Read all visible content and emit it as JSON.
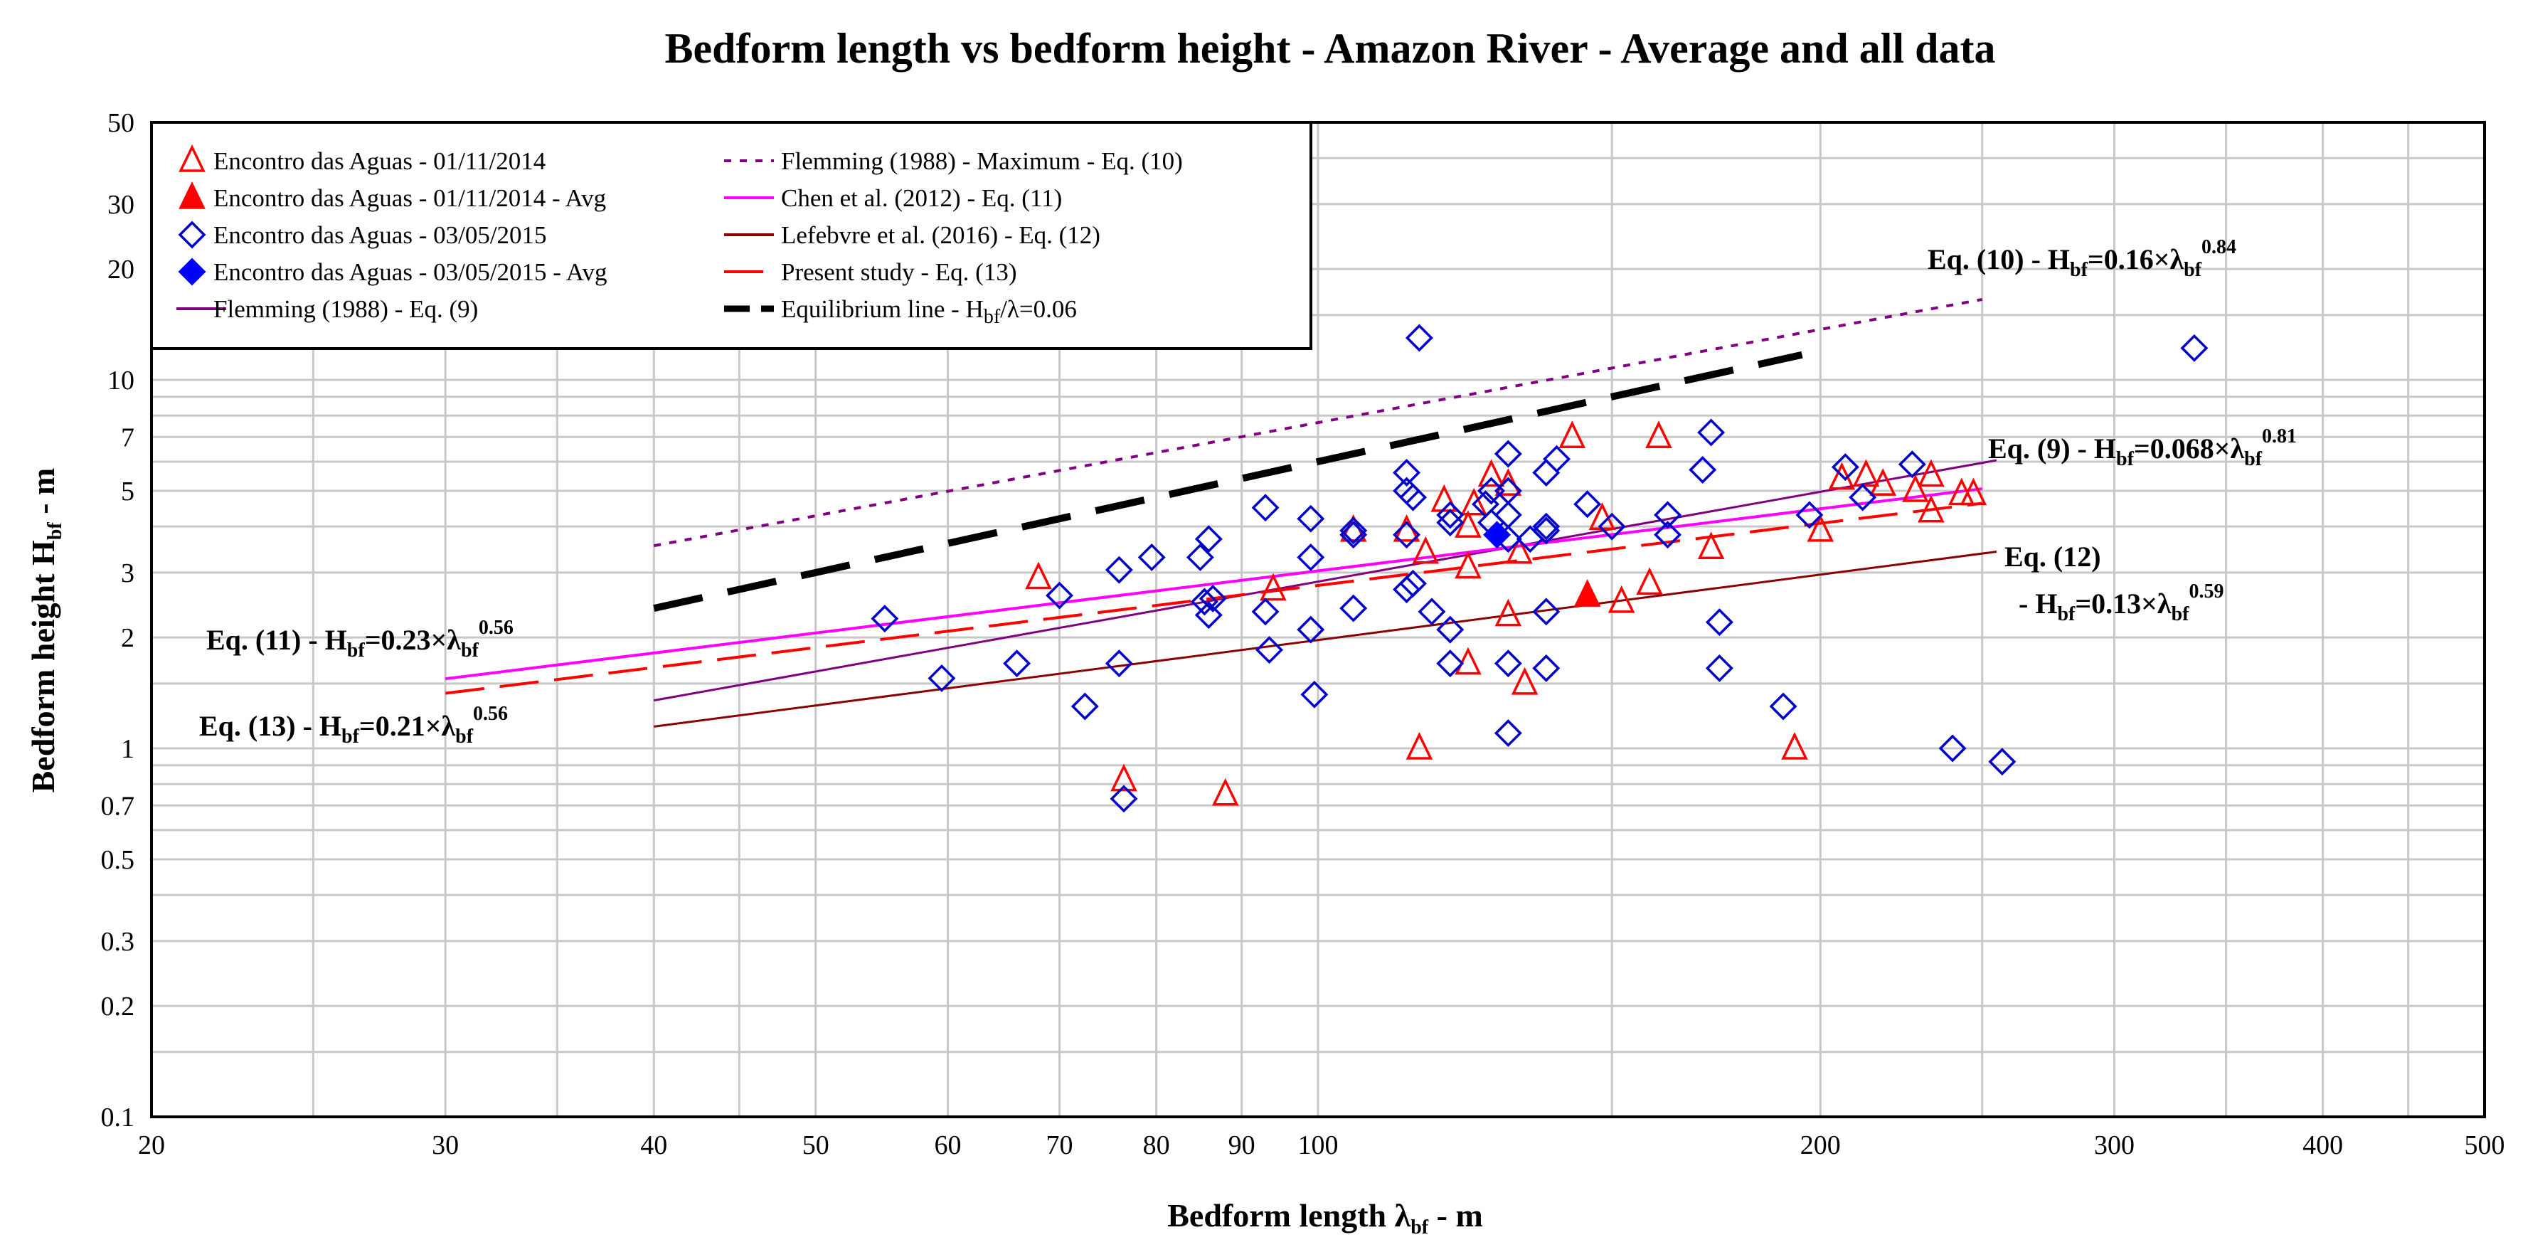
{
  "chart_data": {
    "type": "scatter",
    "title": "Bedform length vs bedform height - Amazon River - Average and all data",
    "xlabel": {
      "main": "Bedform length λ",
      "sub": "bf",
      "tail": " - m"
    },
    "ylabel": {
      "main": "Bedform height H",
      "sub": "bf",
      "tail": " - m"
    },
    "xscale": "log",
    "yscale": "log",
    "xlim": [
      20,
      500
    ],
    "ylim": [
      0.1,
      50
    ],
    "grid": true,
    "x_ticks": [
      {
        "v": 20,
        "label": "20"
      },
      {
        "v": 30,
        "label": "30"
      },
      {
        "v": 40,
        "label": "40"
      },
      {
        "v": 50,
        "label": "50"
      },
      {
        "v": 60,
        "label": "60"
      },
      {
        "v": 70,
        "label": "70"
      },
      {
        "v": 80,
        "label": "80"
      },
      {
        "v": 90,
        "label": "90"
      },
      {
        "v": 100,
        "label": "100"
      },
      {
        "v": 200,
        "label": "200"
      },
      {
        "v": 300,
        "label": "300"
      },
      {
        "v": 400,
        "label": "400"
      },
      {
        "v": 500,
        "label": "500"
      }
    ],
    "y_ticks": [
      {
        "v": 0.1,
        "label": "0.1"
      },
      {
        "v": 0.2,
        "label": "0.2"
      },
      {
        "v": 0.3,
        "label": "0.3"
      },
      {
        "v": 0.5,
        "label": "0.5"
      },
      {
        "v": 0.7,
        "label": "0.7"
      },
      {
        "v": 1,
        "label": "1"
      },
      {
        "v": 2,
        "label": "2"
      },
      {
        "v": 3,
        "label": "3"
      },
      {
        "v": 5,
        "label": "5"
      },
      {
        "v": 7,
        "label": "7"
      },
      {
        "v": 10,
        "label": "10"
      },
      {
        "v": 20,
        "label": "20"
      },
      {
        "v": 30,
        "label": "30"
      },
      {
        "v": 50,
        "label": "50"
      }
    ],
    "x_minor_grid": [
      25,
      35,
      45,
      150,
      250,
      350,
      450
    ],
    "y_minor_grid": [
      0.15,
      0.4,
      0.6,
      0.8,
      0.9,
      1.5,
      4,
      6,
      8,
      9,
      15,
      40
    ],
    "legend_position": "top-left",
    "legend": [
      {
        "label": "Encontro das Aguas - 01/11/2014",
        "marker": "triangle-open",
        "color": "#ff0000"
      },
      {
        "label": "Encontro das Aguas - 01/11/2014 - Avg",
        "marker": "triangle-filled",
        "color": "#ff0000"
      },
      {
        "label": "Encontro das Aguas - 03/05/2015",
        "marker": "diamond-open",
        "color": "#0000cc"
      },
      {
        "label": "Encontro das Aguas - 03/05/2015 - Avg",
        "marker": "diamond-filled",
        "color": "#0000ff"
      },
      {
        "label": "Flemming (1988) - Eq. (9)",
        "line": "solid",
        "color": "#800080",
        "width": 4
      },
      {
        "label": "Flemming (1988) - Maximum - Eq. (10)",
        "line": "dotted",
        "color": "#800080",
        "width": 4
      },
      {
        "label": "Chen et al. (2012) - Eq. (11)",
        "line": "solid",
        "color": "#ff00ff",
        "width": 4
      },
      {
        "label": "Lefebvre et al. (2016) - Eq. (12)",
        "line": "solid",
        "color": "#8b0000",
        "width": 4
      },
      {
        "label": "Present study - Eq. (13)",
        "line": "dashed",
        "color": "#ff0000",
        "width": 4
      },
      {
        "label": "Equilibrium line - H",
        "label_sub": "bf",
        "label_tail": "/λ=0.06",
        "line": "longdash",
        "color": "#000000",
        "width": 9
      }
    ],
    "series": [
      {
        "name": "Encontro das Aguas - 01/11/2014",
        "marker": "triangle-open",
        "color": "#ff0000",
        "points": [
          [
            68,
            2.9
          ],
          [
            76.5,
            0.82
          ],
          [
            88,
            0.75
          ],
          [
            94,
            2.7
          ],
          [
            105,
            3.9
          ],
          [
            113,
            3.9
          ],
          [
            115,
            1.0
          ],
          [
            116,
            3.4
          ],
          [
            119,
            4.7
          ],
          [
            123,
            1.7
          ],
          [
            123,
            3.1
          ],
          [
            123,
            4.0
          ],
          [
            124,
            4.6
          ],
          [
            127,
            5.5
          ],
          [
            130,
            2.3
          ],
          [
            130,
            5.2
          ],
          [
            132,
            3.4
          ],
          [
            133,
            1.5
          ],
          [
            142,
            7.0
          ],
          [
            148,
            4.2
          ],
          [
            152,
            2.5
          ],
          [
            158,
            2.8
          ],
          [
            160,
            7.0
          ],
          [
            172,
            3.5
          ],
          [
            193,
            1.0
          ],
          [
            200,
            3.9
          ],
          [
            206,
            5.4
          ],
          [
            213,
            5.5
          ],
          [
            218,
            5.2
          ],
          [
            228,
            5.0
          ],
          [
            233,
            4.4
          ],
          [
            233,
            5.5
          ],
          [
            243,
            4.9
          ],
          [
            247,
            4.9
          ]
        ]
      },
      {
        "name": "Encontro das Aguas - 01/11/2014 - Avg",
        "marker": "triangle-filled",
        "color": "#ff0000",
        "points": [
          [
            145,
            2.6
          ]
        ]
      },
      {
        "name": "Encontro das Aguas - 03/05/2015",
        "marker": "diamond-open",
        "color": "#0000cc",
        "points": [
          [
            55,
            2.25
          ],
          [
            59.5,
            1.55
          ],
          [
            66,
            1.7
          ],
          [
            70,
            2.6
          ],
          [
            72.5,
            1.3
          ],
          [
            76,
            3.05
          ],
          [
            76,
            1.7
          ],
          [
            76.5,
            0.73
          ],
          [
            79.5,
            3.3
          ],
          [
            85,
            3.3
          ],
          [
            85.5,
            2.5
          ],
          [
            86,
            2.3
          ],
          [
            86.5,
            2.55
          ],
          [
            86,
            3.7
          ],
          [
            93,
            4.5
          ],
          [
            93,
            2.35
          ],
          [
            93.5,
            1.85
          ],
          [
            99,
            4.2
          ],
          [
            99,
            3.3
          ],
          [
            99,
            2.1
          ],
          [
            99.5,
            1.4
          ],
          [
            105,
            3.8
          ],
          [
            105,
            3.9
          ],
          [
            105,
            2.4
          ],
          [
            113,
            3.8
          ],
          [
            113,
            2.7
          ],
          [
            113,
            5.0
          ],
          [
            113,
            5.6
          ],
          [
            114,
            2.8
          ],
          [
            115,
            13
          ],
          [
            114,
            4.8
          ],
          [
            117,
            2.35
          ],
          [
            120,
            2.1
          ],
          [
            120,
            1.7
          ],
          [
            120,
            4.1
          ],
          [
            120,
            4.3
          ],
          [
            126,
            4.6
          ],
          [
            127,
            4.1
          ],
          [
            127,
            5.0
          ],
          [
            130,
            6.3
          ],
          [
            130,
            5.0
          ],
          [
            130,
            4.3
          ],
          [
            130,
            3.7
          ],
          [
            130,
            1.7
          ],
          [
            130,
            1.1
          ],
          [
            134,
            3.7
          ],
          [
            137,
            5.6
          ],
          [
            137,
            3.9
          ],
          [
            137,
            4.0
          ],
          [
            137,
            2.35
          ],
          [
            137,
            1.65
          ],
          [
            139,
            6.1
          ],
          [
            145,
            4.6
          ],
          [
            150,
            4.0
          ],
          [
            162,
            4.3
          ],
          [
            162,
            3.8
          ],
          [
            170,
            5.7
          ],
          [
            172,
            7.2
          ],
          [
            174,
            2.2
          ],
          [
            174,
            1.65
          ],
          [
            190,
            1.3
          ],
          [
            197,
            4.3
          ],
          [
            207,
            5.8
          ],
          [
            212,
            4.8
          ],
          [
            227,
            5.9
          ],
          [
            240,
            1.0
          ],
          [
            257,
            0.92
          ],
          [
            335,
            12.2
          ]
        ]
      },
      {
        "name": "Encontro das Aguas - 03/05/2015 - Avg",
        "marker": "diamond-filled",
        "color": "#0000ff",
        "points": [
          [
            128,
            3.8
          ]
        ]
      }
    ],
    "lines": [
      {
        "name": "Flemming (1988) - Maximum - Eq. (10)",
        "a": 0.16,
        "b": 0.84,
        "x": [
          40,
          250
        ],
        "style": "dotted",
        "color": "#800080",
        "width": 4
      },
      {
        "name": "Equilibrium line - Hbf/λ=0.06",
        "a": 0.06,
        "b": 1.0,
        "x": [
          40,
          195
        ],
        "style": "longdash",
        "color": "#000000",
        "width": 10
      },
      {
        "name": "Flemming (1988) - Eq. (9)",
        "a": 0.068,
        "b": 0.81,
        "x": [
          40,
          255
        ],
        "style": "solid",
        "color": "#800080",
        "width": 3
      },
      {
        "name": "Chen et al. (2012) - Eq. (11)",
        "a": 0.23,
        "b": 0.56,
        "x": [
          30,
          250
        ],
        "style": "solid",
        "color": "#ff00ff",
        "width": 4
      },
      {
        "name": "Present study - Eq. (13)",
        "a": 0.21,
        "b": 0.56,
        "x": [
          30,
          250
        ],
        "style": "dashed",
        "color": "#ff0000",
        "width": 4
      },
      {
        "name": "Lefebvre et al. (2016) - Eq. (12)",
        "a": 0.13,
        "b": 0.59,
        "x": [
          40,
          255
        ],
        "style": "solid",
        "color": "#8b0000",
        "width": 3
      }
    ],
    "annotations": [
      {
        "id": "eq10",
        "pre": "Eq. (10) - H",
        "sub": "bf",
        "mid": "=0.16×λ",
        "sub2": "bf",
        "sup": "0.84"
      },
      {
        "id": "eq9",
        "pre": "Eq. (9) - H",
        "sub": "bf",
        "mid": "=0.068×λ",
        "sub2": "bf",
        "sup": "0.81"
      },
      {
        "id": "eq12a",
        "pre": "Eq. (12)"
      },
      {
        "id": "eq12b",
        "pre": "- H",
        "sub": "bf",
        "mid": "=0.13×λ",
        "sub2": "bf",
        "sup": "0.59"
      },
      {
        "id": "eq11",
        "pre": "Eq. (11) - H",
        "sub": "bf",
        "mid": "=0.23×λ",
        "sub2": "bf",
        "sup": "0.56"
      },
      {
        "id": "eq13",
        "pre": "Eq. (13) - H",
        "sub": "bf",
        "mid": "=0.21×λ",
        "sub2": "bf",
        "sup": "0.56"
      }
    ]
  }
}
